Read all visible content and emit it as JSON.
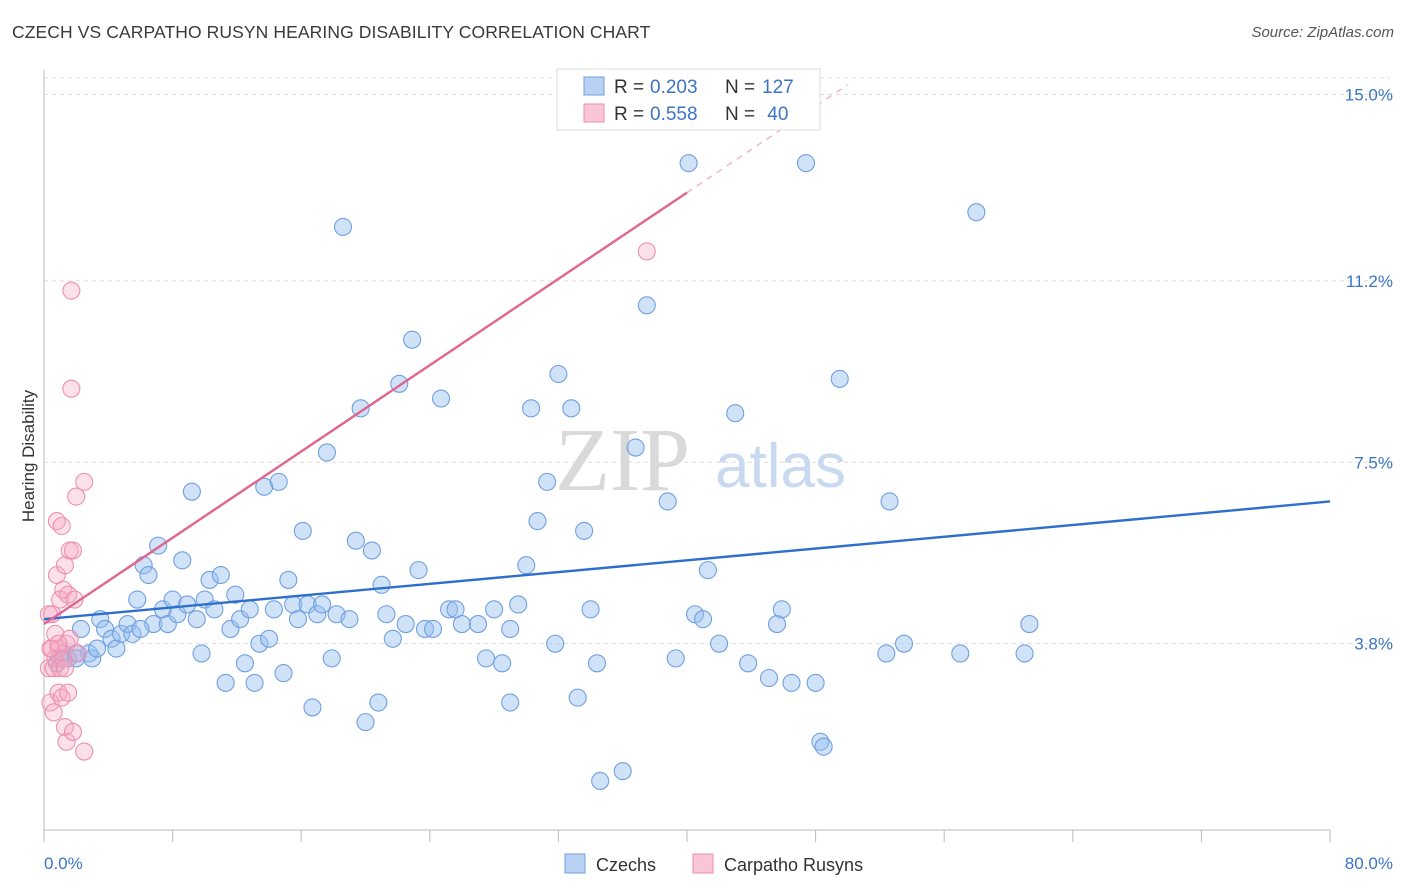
{
  "title": "CZECH VS CARPATHO RUSYN HEARING DISABILITY CORRELATION CHART",
  "source": "Source: ZipAtlas.com",
  "watermark": {
    "zip": "ZIP",
    "atlas": "atlas"
  },
  "legend": {
    "czech": {
      "r_label": "R =",
      "r_value": "0.203",
      "n_label": "N =",
      "n_value": "127"
    },
    "rusyn": {
      "r_label": "R =",
      "r_value": "0.558",
      "n_label": "N =",
      "n_value": " 40"
    }
  },
  "bottom_legend": [
    "Czechs",
    "Carpatho Rusyns"
  ],
  "chart_data": {
    "type": "scatter",
    "title": "CZECH VS CARPATHO RUSYN HEARING DISABILITY CORRELATION CHART",
    "xlabel": "",
    "ylabel": "Hearing Disability",
    "xlim": [
      0,
      80
    ],
    "ylim": [
      0,
      15.5
    ],
    "x_tick_labels": [
      "0.0%",
      "80.0%"
    ],
    "y_ticks": [
      3.8,
      7.5,
      11.2,
      15.0
    ],
    "y_tick_labels": [
      "3.8%",
      "7.5%",
      "11.2%",
      "15.0%"
    ],
    "grid": "horizontal dashed",
    "colors": {
      "czech": "#6fa0e0",
      "czech_line": "#2f6fcc",
      "rusyn": "#ee8fae",
      "rusyn_line": "#e06590"
    },
    "series": [
      {
        "name": "Czechs",
        "trend": {
          "x": [
            0,
            80
          ],
          "y": [
            4.3,
            6.7
          ]
        },
        "points": [
          [
            0.8,
            3.4
          ],
          [
            1.0,
            3.5
          ],
          [
            1.2,
            3.6
          ],
          [
            1.5,
            3.5
          ],
          [
            2.0,
            3.6
          ],
          [
            2.3,
            4.1
          ],
          [
            2.8,
            3.6
          ],
          [
            3.0,
            3.5
          ],
          [
            3.3,
            3.7
          ],
          [
            3.5,
            4.3
          ],
          [
            3.8,
            4.1
          ],
          [
            4.2,
            3.9
          ],
          [
            4.5,
            3.7
          ],
          [
            4.8,
            4.0
          ],
          [
            5.2,
            4.2
          ],
          [
            5.5,
            4.0
          ],
          [
            5.8,
            4.7
          ],
          [
            6.2,
            5.4
          ],
          [
            6.5,
            5.2
          ],
          [
            6.8,
            4.2
          ],
          [
            7.1,
            5.8
          ],
          [
            7.4,
            4.5
          ],
          [
            7.7,
            4.2
          ],
          [
            8.0,
            4.7
          ],
          [
            8.3,
            4.4
          ],
          [
            8.6,
            5.5
          ],
          [
            8.9,
            4.6
          ],
          [
            9.2,
            6.9
          ],
          [
            9.5,
            4.3
          ],
          [
            9.8,
            3.6
          ],
          [
            10.0,
            4.7
          ],
          [
            10.3,
            5.1
          ],
          [
            10.6,
            4.5
          ],
          [
            11.0,
            5.2
          ],
          [
            11.3,
            3.0
          ],
          [
            11.6,
            4.1
          ],
          [
            11.9,
            4.8
          ],
          [
            12.2,
            4.3
          ],
          [
            12.5,
            3.4
          ],
          [
            12.8,
            4.5
          ],
          [
            13.1,
            3.0
          ],
          [
            13.4,
            3.8
          ],
          [
            13.7,
            7.0
          ],
          [
            14.0,
            3.9
          ],
          [
            14.3,
            4.5
          ],
          [
            14.6,
            7.1
          ],
          [
            14.9,
            3.2
          ],
          [
            15.2,
            5.1
          ],
          [
            15.5,
            4.6
          ],
          [
            15.8,
            4.3
          ],
          [
            16.1,
            6.1
          ],
          [
            16.4,
            4.6
          ],
          [
            16.7,
            2.5
          ],
          [
            17.0,
            4.4
          ],
          [
            17.3,
            4.6
          ],
          [
            17.6,
            7.7
          ],
          [
            17.9,
            3.5
          ],
          [
            18.2,
            4.4
          ],
          [
            18.6,
            12.3
          ],
          [
            19.0,
            4.3
          ],
          [
            19.4,
            5.9
          ],
          [
            19.7,
            8.6
          ],
          [
            20.0,
            2.2
          ],
          [
            20.4,
            5.7
          ],
          [
            20.8,
            2.6
          ],
          [
            21.0,
            5.0
          ],
          [
            21.3,
            4.4
          ],
          [
            21.7,
            3.9
          ],
          [
            22.1,
            9.1
          ],
          [
            22.5,
            4.2
          ],
          [
            22.9,
            10.0
          ],
          [
            23.3,
            5.3
          ],
          [
            23.7,
            4.1
          ],
          [
            24.2,
            4.1
          ],
          [
            24.7,
            8.8
          ],
          [
            25.2,
            4.5
          ],
          [
            25.6,
            4.5
          ],
          [
            26.0,
            4.2
          ],
          [
            27.0,
            4.2
          ],
          [
            27.5,
            3.5
          ],
          [
            28.0,
            4.5
          ],
          [
            28.5,
            3.4
          ],
          [
            29.0,
            2.6
          ],
          [
            29.5,
            4.6
          ],
          [
            30.0,
            5.4
          ],
          [
            30.3,
            8.6
          ],
          [
            30.7,
            6.3
          ],
          [
            31.3,
            7.1
          ],
          [
            31.8,
            3.8
          ],
          [
            32.0,
            9.3
          ],
          [
            32.8,
            8.6
          ],
          [
            33.2,
            2.7
          ],
          [
            33.6,
            6.1
          ],
          [
            34.0,
            4.5
          ],
          [
            34.4,
            3.4
          ],
          [
            34.6,
            1.0
          ],
          [
            36.0,
            1.2
          ],
          [
            36.8,
            7.8
          ],
          [
            37.5,
            10.7
          ],
          [
            38.8,
            6.7
          ],
          [
            39.3,
            3.5
          ],
          [
            40.1,
            13.6
          ],
          [
            40.5,
            4.4
          ],
          [
            41.0,
            4.3
          ],
          [
            41.3,
            5.3
          ],
          [
            42.0,
            3.8
          ],
          [
            43.0,
            8.5
          ],
          [
            43.8,
            3.4
          ],
          [
            45.1,
            3.1
          ],
          [
            45.6,
            4.2
          ],
          [
            45.9,
            4.5
          ],
          [
            46.5,
            3.0
          ],
          [
            47.4,
            13.6
          ],
          [
            48.0,
            3.0
          ],
          [
            48.3,
            1.8
          ],
          [
            48.5,
            1.7
          ],
          [
            49.5,
            9.2
          ],
          [
            52.4,
            3.6
          ],
          [
            52.6,
            6.7
          ],
          [
            53.5,
            3.8
          ],
          [
            57.0,
            3.6
          ],
          [
            58.0,
            12.6
          ],
          [
            61.0,
            3.6
          ],
          [
            61.3,
            4.2
          ],
          [
            2.0,
            3.5
          ],
          [
            6.0,
            4.1
          ],
          [
            29.0,
            4.1
          ]
        ]
      },
      {
        "name": "Carpatho Rusyns",
        "trend": {
          "x": [
            0,
            40
          ],
          "y": [
            4.2,
            13.0
          ]
        },
        "points": [
          [
            0.3,
            3.3
          ],
          [
            0.4,
            2.6
          ],
          [
            0.5,
            3.7
          ],
          [
            0.5,
            4.4
          ],
          [
            0.6,
            2.4
          ],
          [
            0.6,
            3.3
          ],
          [
            0.7,
            4.0
          ],
          [
            0.7,
            3.5
          ],
          [
            0.8,
            6.3
          ],
          [
            0.8,
            5.2
          ],
          [
            0.9,
            3.7
          ],
          [
            0.9,
            2.8
          ],
          [
            1.0,
            4.7
          ],
          [
            1.0,
            3.3
          ],
          [
            1.1,
            6.2
          ],
          [
            1.1,
            2.7
          ],
          [
            1.2,
            4.9
          ],
          [
            1.2,
            3.5
          ],
          [
            1.3,
            5.4
          ],
          [
            1.3,
            2.1
          ],
          [
            1.4,
            3.8
          ],
          [
            1.4,
            1.8
          ],
          [
            1.5,
            4.8
          ],
          [
            1.5,
            2.8
          ],
          [
            1.6,
            5.7
          ],
          [
            1.6,
            3.9
          ],
          [
            1.7,
            9.0
          ],
          [
            1.7,
            11.0
          ],
          [
            1.8,
            5.7
          ],
          [
            1.8,
            2.0
          ],
          [
            1.9,
            4.7
          ],
          [
            2.0,
            6.8
          ],
          [
            2.1,
            3.6
          ],
          [
            2.5,
            1.6
          ],
          [
            2.5,
            7.1
          ],
          [
            37.5,
            11.8
          ],
          [
            0.3,
            4.4
          ],
          [
            0.4,
            3.7
          ],
          [
            0.9,
            3.8
          ],
          [
            1.3,
            3.3
          ]
        ]
      }
    ]
  }
}
